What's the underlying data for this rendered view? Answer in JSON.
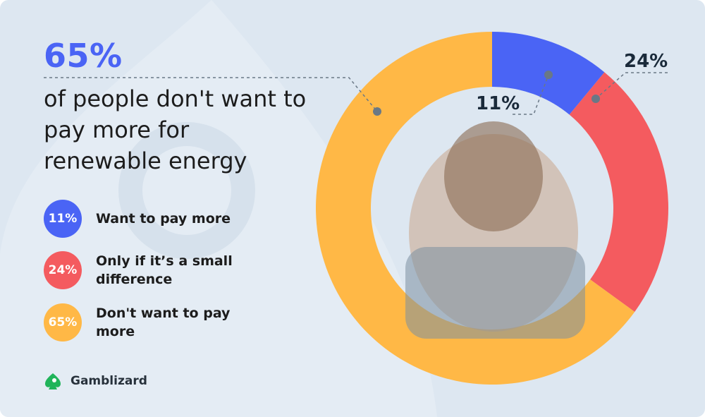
{
  "headline": {
    "value": "65%",
    "text": "of people don't want to pay more for renewable energy"
  },
  "legend": [
    {
      "badge": "11%",
      "label": "Want to pay more",
      "color": "#4a64f5"
    },
    {
      "badge": "24%",
      "label": "Only if it’s a small difference",
      "color": "#f45b5f"
    },
    {
      "badge": "65%",
      "label": "Don't want to pay more",
      "color": "#ffb846"
    }
  ],
  "callouts": {
    "blue": "11%",
    "red": "24%"
  },
  "brand": {
    "name": "Gamblizard",
    "color": "#20b45a"
  },
  "chart_data": {
    "type": "pie",
    "donut": true,
    "categories": [
      "Want to pay more",
      "Only if it’s a small difference",
      "Don't want to pay more"
    ],
    "values": [
      11,
      24,
      65
    ],
    "colors": [
      "#4a64f5",
      "#f45b5f",
      "#ffb846"
    ],
    "data_labels": [
      "11%",
      "24%",
      ""
    ],
    "unit": "%"
  }
}
